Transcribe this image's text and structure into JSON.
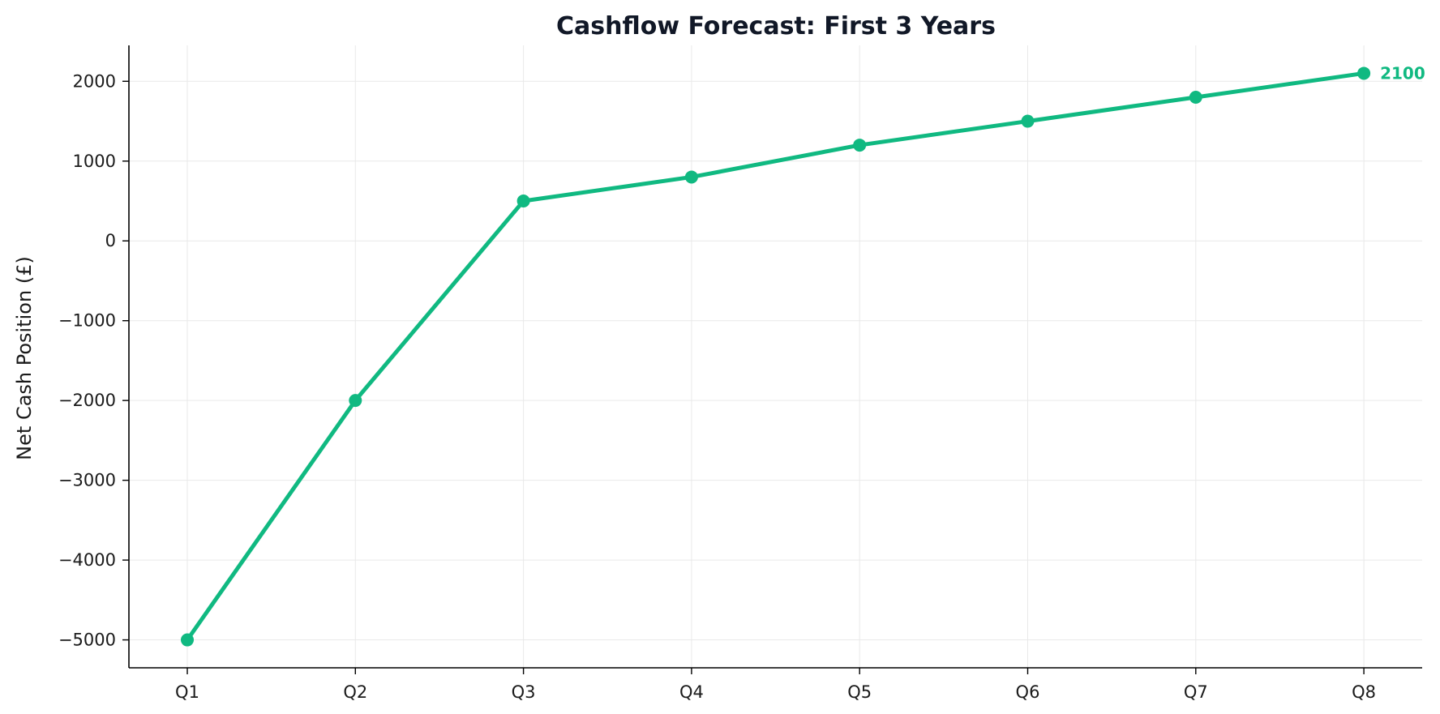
{
  "chart_data": {
    "type": "line",
    "title": "Cashflow Forecast: First 3 Years",
    "xlabel": "",
    "ylabel": "Net Cash Position (£)",
    "categories": [
      "Q1",
      "Q2",
      "Q3",
      "Q4",
      "Q5",
      "Q6",
      "Q7",
      "Q8"
    ],
    "series": [
      {
        "values": [
          -5000,
          -2000,
          500,
          800,
          1200,
          1500,
          1800,
          2100
        ],
        "color": "#10b981"
      }
    ],
    "y_ticks": [
      -5000,
      -4000,
      -3000,
      -2000,
      -1000,
      0,
      1000,
      2000
    ],
    "y_tick_labels": [
      "−5000",
      "−4000",
      "−3000",
      "−2000",
      "−1000",
      "0",
      "1000",
      "2000"
    ],
    "ylim": [
      -5350,
      2450
    ],
    "grid": true,
    "end_label": "2100"
  }
}
